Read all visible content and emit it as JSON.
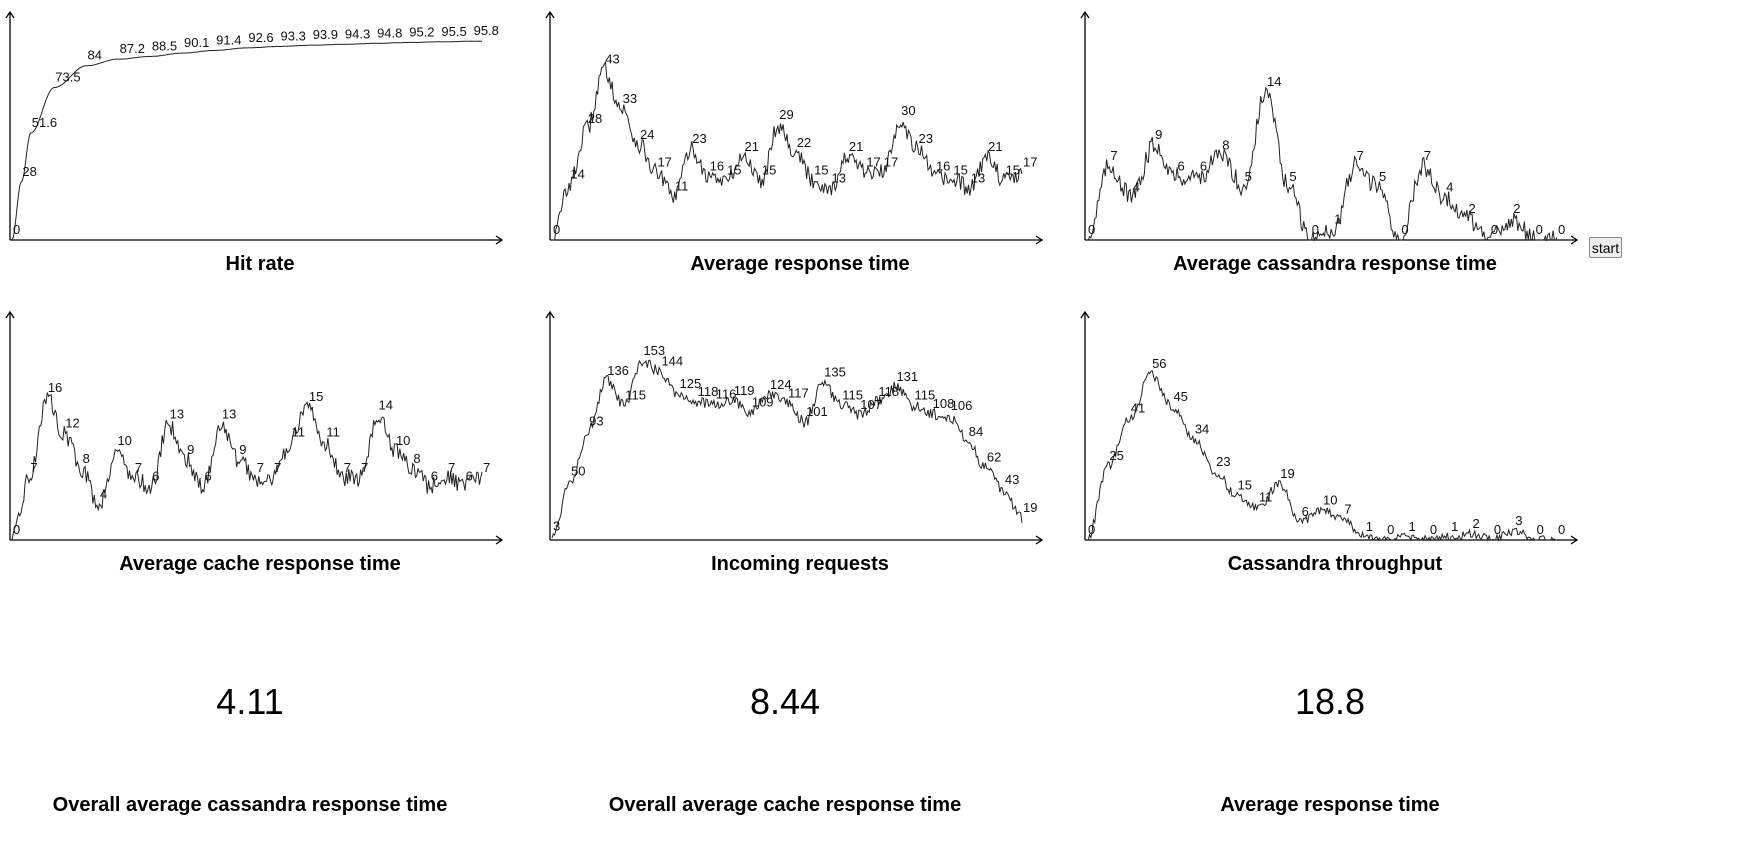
{
  "controls": {
    "start_label": "start"
  },
  "chart_data": [
    {
      "type": "line",
      "title": "Hit rate",
      "xlabel": "",
      "ylabel": "",
      "ylim": [
        0,
        107
      ],
      "noise": 0.05,
      "series": [
        {
          "values": [
            0,
            28,
            51.6,
            73.5,
            84,
            87.2,
            88.5,
            90.1,
            91.4,
            92.6,
            93.3,
            93.9,
            94.3,
            94.8,
            95.2,
            95.5,
            95.8
          ]
        }
      ]
    },
    {
      "type": "line",
      "title": "Average response time",
      "xlabel": "",
      "ylabel": "",
      "ylim": [
        0,
        56
      ],
      "noise": 2.2,
      "series": [
        {
          "values": [
            0,
            14,
            28,
            43,
            33,
            24,
            17,
            11,
            23,
            16,
            15,
            21,
            15,
            29,
            22,
            15,
            13,
            21,
            17,
            17,
            30,
            23,
            16,
            15,
            13,
            21,
            15,
            17
          ]
        }
      ]
    },
    {
      "type": "line",
      "title": "Average cassandra response time",
      "xlabel": "",
      "ylabel": "",
      "ylim": [
        0,
        21
      ],
      "noise": 0.9,
      "series": [
        {
          "values": [
            0,
            7,
            4,
            9,
            6,
            6,
            8,
            5,
            14,
            5,
            0,
            1,
            7,
            5,
            0,
            7,
            4,
            2,
            0,
            2,
            0,
            0
          ]
        }
      ]
    },
    {
      "type": "line",
      "title": "Average cache response time",
      "xlabel": "",
      "ylabel": "",
      "ylim": [
        0,
        25
      ],
      "noise": 1.0,
      "series": [
        {
          "values": [
            0,
            7,
            16,
            12,
            8,
            4,
            10,
            7,
            6,
            13,
            9,
            6,
            13,
            9,
            7,
            7,
            11,
            15,
            11,
            7,
            7,
            14,
            10,
            8,
            6,
            7,
            6,
            7
          ]
        }
      ]
    },
    {
      "type": "line",
      "title": "Incoming requests",
      "xlabel": "",
      "ylabel": "",
      "ylim": [
        0,
        190
      ],
      "noise": 5,
      "series": [
        {
          "values": [
            3,
            50,
            93,
            136,
            115,
            153,
            144,
            125,
            118,
            116,
            119,
            109,
            124,
            117,
            101,
            135,
            115,
            107,
            118,
            131,
            115,
            108,
            106,
            84,
            62,
            43,
            19
          ]
        }
      ]
    },
    {
      "type": "line",
      "title": "Cassandra throughput",
      "xlabel": "",
      "ylabel": "",
      "ylim": [
        0,
        75
      ],
      "noise": 1.5,
      "series": [
        {
          "values": [
            0,
            25,
            41,
            56,
            45,
            34,
            23,
            15,
            11,
            19,
            6,
            10,
            7,
            1,
            0,
            1,
            0,
            1,
            2,
            0,
            3,
            0,
            0
          ]
        }
      ]
    }
  ],
  "stats": [
    {
      "value": "4.11",
      "label": "Overall average cassandra response time"
    },
    {
      "value": "8.44",
      "label": "Overall average cache response time"
    },
    {
      "value": "18.8",
      "label": "Average response time"
    }
  ]
}
